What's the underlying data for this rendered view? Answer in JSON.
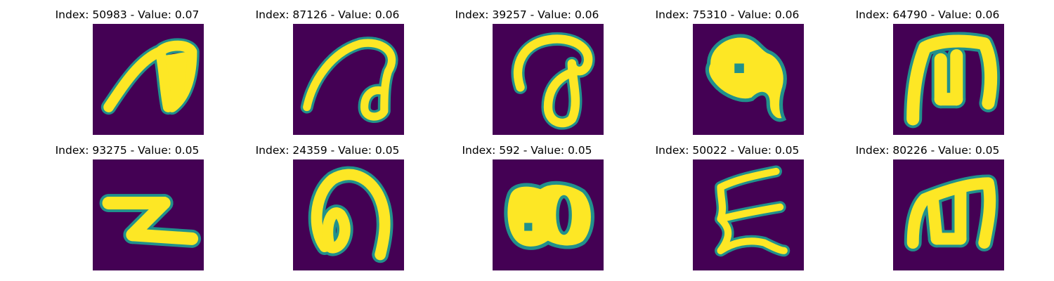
{
  "colors": {
    "background": "#440154",
    "mid": "#21918c",
    "stroke": "#fde725"
  },
  "panels": [
    {
      "title": "Index: 50983 - Value: 0.07",
      "glyph": "glyph-a-like-icon"
    },
    {
      "title": "Index: 87126 - Value: 0.06",
      "glyph": "glyph-loop-hook-icon"
    },
    {
      "title": "Index: 39257 - Value: 0.06",
      "glyph": "glyph-loop-circle-icon"
    },
    {
      "title": "Index: 75310 - Value: 0.06",
      "glyph": "glyph-blob-tail-icon"
    },
    {
      "title": "Index: 64790 - Value: 0.06",
      "glyph": "glyph-m-like-icon"
    },
    {
      "title": "Index: 93275 - Value: 0.05",
      "glyph": "glyph-z-like-icon"
    },
    {
      "title": "Index: 24359 - Value: 0.05",
      "glyph": "glyph-double-loop-icon"
    },
    {
      "title": "Index: 592 - Value: 0.05",
      "glyph": "glyph-eight-blob-icon"
    },
    {
      "title": "Index: 50022 - Value: 0.05",
      "glyph": "glyph-zigzag-icon"
    },
    {
      "title": "Index: 80226 - Value: 0.05",
      "glyph": "glyph-m-like-icon"
    }
  ]
}
